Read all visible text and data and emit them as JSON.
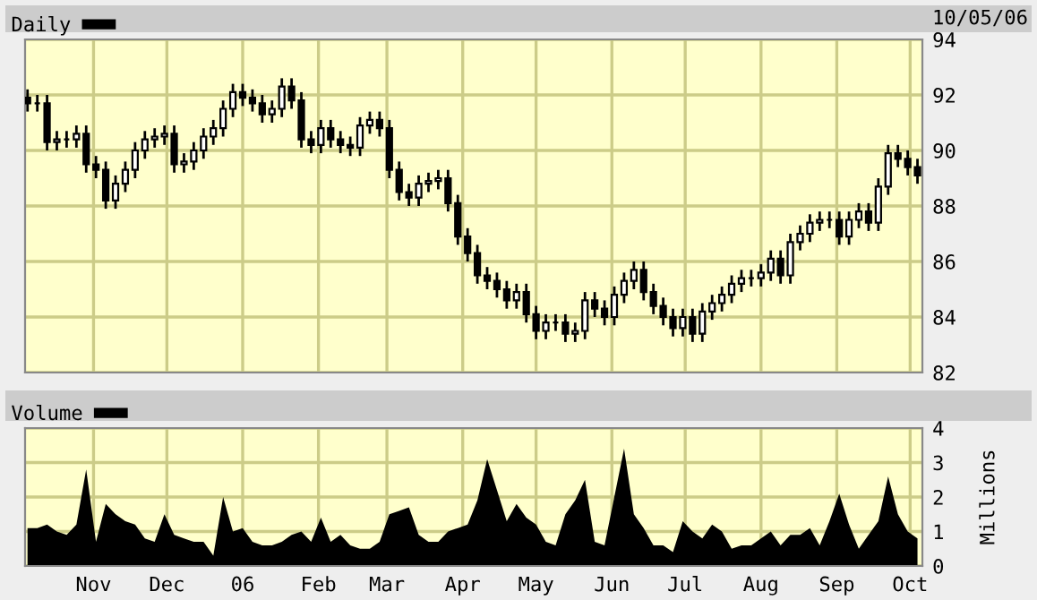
{
  "chart_data": [
    {
      "type": "candlestick",
      "annotations": [
        "10/05/06"
      ],
      "legend": "top left",
      "grid": true,
      "tick_labels": "y",
      "xlim": [
        "2005-10-04",
        "2006-10-06"
      ],
      "xticks": [
        {
          "value": "2005-11-01",
          "label": null
        },
        {
          "value": "2005-12-01",
          "label": null
        },
        {
          "value": "2006-01-01",
          "label": null
        },
        {
          "value": "2006-02-01",
          "label": null
        },
        {
          "value": "2006-03-01",
          "label": null
        },
        {
          "value": "2006-04-01",
          "label": null
        },
        {
          "value": "2006-05-01",
          "label": null
        },
        {
          "value": "2006-06-01",
          "label": null
        },
        {
          "value": "2006-07-01",
          "label": null
        },
        {
          "value": "2006-08-01",
          "label": null
        },
        {
          "value": "2006-09-01",
          "label": null
        },
        {
          "value": "2006-10-01",
          "label": null
        }
      ],
      "ylim": [
        82,
        94
      ],
      "yticks": [
        82,
        84,
        86,
        88,
        90,
        92,
        94
      ],
      "x": [
        "2005-10-05",
        "2005-10-09",
        "2005-10-13",
        "2005-10-17",
        "2005-10-21",
        "2005-10-25",
        "2005-10-29",
        "2005-11-02",
        "2005-11-06",
        "2005-11-10",
        "2005-11-14",
        "2005-11-18",
        "2005-11-22",
        "2005-11-26",
        "2005-11-30",
        "2005-12-04",
        "2005-12-08",
        "2005-12-12",
        "2005-12-16",
        "2005-12-20",
        "2005-12-24",
        "2005-12-28",
        "2006-01-01",
        "2006-01-05",
        "2006-01-09",
        "2006-01-13",
        "2006-01-17",
        "2006-01-21",
        "2006-01-25",
        "2006-01-29",
        "2006-02-02",
        "2006-02-06",
        "2006-02-10",
        "2006-02-14",
        "2006-02-18",
        "2006-02-22",
        "2006-02-26",
        "2006-03-02",
        "2006-03-06",
        "2006-03-10",
        "2006-03-14",
        "2006-03-18",
        "2006-03-22",
        "2006-03-26",
        "2006-03-30",
        "2006-04-03",
        "2006-04-07",
        "2006-04-11",
        "2006-04-15",
        "2006-04-19",
        "2006-04-23",
        "2006-04-27",
        "2006-05-01",
        "2006-05-05",
        "2006-05-09",
        "2006-05-13",
        "2006-05-17",
        "2006-05-21",
        "2006-05-25",
        "2006-05-29",
        "2006-06-02",
        "2006-06-06",
        "2006-06-10",
        "2006-06-14",
        "2006-06-18",
        "2006-06-22",
        "2006-06-26",
        "2006-06-30",
        "2006-07-04",
        "2006-07-08",
        "2006-07-12",
        "2006-07-16",
        "2006-07-20",
        "2006-07-24",
        "2006-07-28",
        "2006-08-01",
        "2006-08-05",
        "2006-08-09",
        "2006-08-13",
        "2006-08-17",
        "2006-08-21",
        "2006-08-25",
        "2006-08-29",
        "2006-09-02",
        "2006-09-06",
        "2006-09-10",
        "2006-09-14",
        "2006-09-18",
        "2006-09-22",
        "2006-09-26",
        "2006-09-30",
        "2006-10-04"
      ],
      "series": [
        {
          "name": "Daily",
          "color": "#000000",
          "ohlc": [
            [
              91.9,
              92.2,
              91.4,
              91.7
            ],
            [
              91.7,
              92.0,
              91.4,
              91.7
            ],
            [
              91.7,
              92.0,
              90.0,
              90.3
            ],
            [
              90.3,
              90.7,
              90.0,
              90.4
            ],
            [
              90.4,
              90.7,
              90.1,
              90.4
            ],
            [
              90.4,
              90.9,
              90.1,
              90.6
            ],
            [
              90.6,
              90.9,
              89.2,
              89.5
            ],
            [
              89.5,
              89.8,
              89.0,
              89.3
            ],
            [
              89.3,
              89.6,
              87.9,
              88.2
            ],
            [
              88.2,
              89.1,
              87.9,
              88.8
            ],
            [
              88.8,
              89.6,
              88.5,
              89.3
            ],
            [
              89.3,
              90.3,
              89.0,
              90.0
            ],
            [
              90.0,
              90.7,
              89.7,
              90.4
            ],
            [
              90.4,
              90.8,
              90.1,
              90.5
            ],
            [
              90.5,
              90.9,
              90.2,
              90.6
            ],
            [
              90.6,
              90.9,
              89.2,
              89.5
            ],
            [
              89.5,
              89.9,
              89.2,
              89.6
            ],
            [
              89.6,
              90.3,
              89.3,
              90.0
            ],
            [
              90.0,
              90.8,
              89.7,
              90.5
            ],
            [
              90.5,
              91.1,
              90.2,
              90.8
            ],
            [
              90.8,
              91.8,
              90.5,
              91.5
            ],
            [
              91.5,
              92.4,
              91.2,
              92.1
            ],
            [
              92.1,
              92.4,
              91.6,
              91.9
            ],
            [
              91.9,
              92.2,
              91.4,
              91.7
            ],
            [
              91.7,
              92.0,
              91.0,
              91.3
            ],
            [
              91.3,
              91.8,
              91.0,
              91.5
            ],
            [
              91.5,
              92.6,
              91.2,
              92.3
            ],
            [
              92.3,
              92.6,
              91.5,
              91.8
            ],
            [
              91.8,
              92.1,
              90.1,
              90.4
            ],
            [
              90.4,
              90.7,
              89.9,
              90.2
            ],
            [
              90.2,
              91.1,
              89.9,
              90.8
            ],
            [
              90.8,
              91.1,
              90.1,
              90.4
            ],
            [
              90.4,
              90.7,
              89.9,
              90.2
            ],
            [
              90.2,
              90.5,
              89.8,
              90.1
            ],
            [
              90.1,
              91.2,
              89.8,
              90.9
            ],
            [
              90.9,
              91.4,
              90.6,
              91.1
            ],
            [
              91.1,
              91.4,
              90.5,
              90.8
            ],
            [
              90.8,
              91.1,
              89.0,
              89.3
            ],
            [
              89.3,
              89.6,
              88.2,
              88.5
            ],
            [
              88.5,
              88.8,
              88.0,
              88.3
            ],
            [
              88.3,
              89.1,
              88.0,
              88.8
            ],
            [
              88.8,
              89.2,
              88.5,
              88.9
            ],
            [
              88.9,
              89.3,
              88.6,
              89.0
            ],
            [
              89.0,
              89.3,
              87.8,
              88.1
            ],
            [
              88.1,
              88.4,
              86.6,
              86.9
            ],
            [
              86.9,
              87.2,
              86.0,
              86.3
            ],
            [
              86.3,
              86.6,
              85.2,
              85.5
            ],
            [
              85.5,
              85.8,
              85.0,
              85.3
            ],
            [
              85.3,
              85.6,
              84.7,
              85.0
            ],
            [
              85.0,
              85.3,
              84.3,
              84.6
            ],
            [
              84.6,
              85.2,
              84.3,
              84.9
            ],
            [
              84.9,
              85.2,
              83.8,
              84.1
            ],
            [
              84.1,
              84.4,
              83.2,
              83.5
            ],
            [
              83.5,
              84.1,
              83.2,
              83.8
            ],
            [
              83.8,
              84.1,
              83.5,
              83.8
            ],
            [
              83.8,
              84.1,
              83.1,
              83.4
            ],
            [
              83.4,
              83.8,
              83.1,
              83.5
            ],
            [
              83.5,
              84.9,
              83.2,
              84.6
            ],
            [
              84.6,
              84.9,
              84.0,
              84.3
            ],
            [
              84.3,
              84.6,
              83.7,
              84.0
            ],
            [
              84.0,
              85.1,
              83.7,
              84.8
            ],
            [
              84.8,
              85.6,
              84.5,
              85.3
            ],
            [
              85.3,
              86.0,
              85.0,
              85.7
            ],
            [
              85.7,
              86.0,
              84.6,
              84.9
            ],
            [
              84.9,
              85.2,
              84.1,
              84.4
            ],
            [
              84.4,
              84.7,
              83.7,
              84.0
            ],
            [
              84.0,
              84.3,
              83.3,
              83.6
            ],
            [
              83.6,
              84.3,
              83.3,
              84.0
            ],
            [
              84.0,
              84.3,
              83.1,
              83.4
            ],
            [
              83.4,
              84.5,
              83.1,
              84.2
            ],
            [
              84.2,
              84.8,
              83.9,
              84.5
            ],
            [
              84.5,
              85.1,
              84.2,
              84.8
            ],
            [
              84.8,
              85.5,
              84.5,
              85.2
            ],
            [
              85.2,
              85.7,
              84.9,
              85.4
            ],
            [
              85.4,
              85.7,
              85.1,
              85.4
            ],
            [
              85.4,
              85.9,
              85.1,
              85.6
            ],
            [
              85.6,
              86.4,
              85.3,
              86.1
            ],
            [
              86.1,
              86.4,
              85.2,
              85.5
            ],
            [
              85.5,
              87.0,
              85.2,
              86.7
            ],
            [
              86.7,
              87.3,
              86.4,
              87.0
            ],
            [
              87.0,
              87.7,
              86.7,
              87.4
            ],
            [
              87.4,
              87.8,
              87.1,
              87.5
            ],
            [
              87.5,
              87.8,
              87.2,
              87.5
            ],
            [
              87.5,
              87.8,
              86.6,
              86.9
            ],
            [
              86.9,
              87.8,
              86.6,
              87.5
            ],
            [
              87.5,
              88.1,
              87.2,
              87.8
            ],
            [
              87.8,
              88.1,
              87.1,
              87.4
            ],
            [
              87.4,
              89.0,
              87.1,
              88.7
            ],
            [
              88.7,
              90.2,
              88.4,
              89.9
            ],
            [
              89.9,
              90.2,
              89.4,
              89.7
            ],
            [
              89.7,
              90.0,
              89.1,
              89.4
            ],
            [
              89.4,
              89.7,
              88.8,
              89.1
            ]
          ]
        }
      ]
    },
    {
      "type": "area",
      "y2label": "Millions",
      "legend": "top left",
      "grid": true,
      "xlim": [
        "2005-10-04",
        "2006-10-06"
      ],
      "xticks": [
        {
          "value": "2005-11-01",
          "label": "Nov"
        },
        {
          "value": "2005-12-01",
          "label": "Dec"
        },
        {
          "value": "2006-01-01",
          "label": "06"
        },
        {
          "value": "2006-02-01",
          "label": "Feb"
        },
        {
          "value": "2006-03-01",
          "label": "Mar"
        },
        {
          "value": "2006-04-01",
          "label": "Apr"
        },
        {
          "value": "2006-05-01",
          "label": "May"
        },
        {
          "value": "2006-06-01",
          "label": "Jun"
        },
        {
          "value": "2006-07-01",
          "label": "Jul"
        },
        {
          "value": "2006-08-01",
          "label": "Aug"
        },
        {
          "value": "2006-09-01",
          "label": "Sep"
        },
        {
          "value": "2006-10-01",
          "label": "Oct"
        }
      ],
      "ylim": [
        0,
        4
      ],
      "yticks": [
        0,
        1,
        2,
        3,
        4
      ],
      "x": [
        "2005-10-05",
        "2005-10-09",
        "2005-10-13",
        "2005-10-17",
        "2005-10-21",
        "2005-10-25",
        "2005-10-29",
        "2005-11-02",
        "2005-11-06",
        "2005-11-10",
        "2005-11-14",
        "2005-11-18",
        "2005-11-22",
        "2005-11-26",
        "2005-11-30",
        "2005-12-04",
        "2005-12-08",
        "2005-12-12",
        "2005-12-16",
        "2005-12-20",
        "2005-12-24",
        "2005-12-28",
        "2006-01-01",
        "2006-01-05",
        "2006-01-09",
        "2006-01-13",
        "2006-01-17",
        "2006-01-21",
        "2006-01-25",
        "2006-01-29",
        "2006-02-02",
        "2006-02-06",
        "2006-02-10",
        "2006-02-14",
        "2006-02-18",
        "2006-02-22",
        "2006-02-26",
        "2006-03-02",
        "2006-03-06",
        "2006-03-10",
        "2006-03-14",
        "2006-03-18",
        "2006-03-22",
        "2006-03-26",
        "2006-03-30",
        "2006-04-03",
        "2006-04-07",
        "2006-04-11",
        "2006-04-15",
        "2006-04-19",
        "2006-04-23",
        "2006-04-27",
        "2006-05-01",
        "2006-05-05",
        "2006-05-09",
        "2006-05-13",
        "2006-05-17",
        "2006-05-21",
        "2006-05-25",
        "2006-05-29",
        "2006-06-02",
        "2006-06-06",
        "2006-06-10",
        "2006-06-14",
        "2006-06-18",
        "2006-06-22",
        "2006-06-26",
        "2006-06-30",
        "2006-07-04",
        "2006-07-08",
        "2006-07-12",
        "2006-07-16",
        "2006-07-20",
        "2006-07-24",
        "2006-07-28",
        "2006-08-01",
        "2006-08-05",
        "2006-08-09",
        "2006-08-13",
        "2006-08-17",
        "2006-08-21",
        "2006-08-25",
        "2006-08-29",
        "2006-09-02",
        "2006-09-06",
        "2006-09-10",
        "2006-09-14",
        "2006-09-18",
        "2006-09-22",
        "2006-09-26",
        "2006-09-30",
        "2006-10-04"
      ],
      "series": [
        {
          "name": "Volume",
          "color": "#000000",
          "values": [
            1.1,
            1.1,
            1.2,
            1.0,
            0.9,
            1.2,
            2.8,
            0.7,
            1.8,
            1.5,
            1.3,
            1.2,
            0.8,
            0.7,
            1.5,
            0.9,
            0.8,
            0.7,
            0.7,
            0.3,
            2.0,
            1.0,
            1.1,
            0.7,
            0.6,
            0.6,
            0.7,
            0.9,
            1.0,
            0.7,
            1.4,
            0.7,
            0.9,
            0.6,
            0.5,
            0.5,
            0.7,
            1.5,
            1.6,
            1.7,
            0.9,
            0.7,
            0.7,
            1.0,
            1.1,
            1.2,
            1.9,
            3.1,
            2.2,
            1.3,
            1.8,
            1.4,
            1.2,
            0.7,
            0.6,
            1.5,
            1.9,
            2.5,
            0.7,
            0.6,
            2.0,
            3.4,
            1.5,
            1.1,
            0.6,
            0.6,
            0.4,
            1.3,
            1.0,
            0.8,
            1.2,
            1.0,
            0.5,
            0.6,
            0.6,
            0.8,
            1.0,
            0.6,
            0.9,
            0.9,
            1.1,
            0.6,
            1.3,
            2.1,
            1.2,
            0.5,
            0.9,
            1.3,
            2.6,
            1.5,
            1.0,
            0.8
          ]
        }
      ]
    }
  ]
}
